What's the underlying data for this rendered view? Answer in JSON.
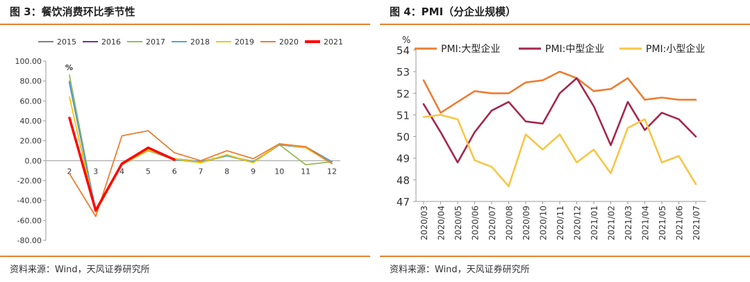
{
  "left_panel": {
    "title": "图 3：餐饮消费环比季节性",
    "source": "资料来源：Wind，天风证券研究所"
  },
  "right_panel": {
    "title": "图 4：PMI（分企业规模）",
    "source": "资料来源：Wind，天风证券研究所"
  },
  "chart_data": [
    {
      "type": "line",
      "title": "图 3：餐饮消费环比季节性",
      "ylabel": "%",
      "xlabel": "",
      "x": [
        "2",
        "3",
        "4",
        "5",
        "6",
        "7",
        "8",
        "9",
        "10",
        "11",
        "12"
      ],
      "ylim": [
        -80,
        100
      ],
      "yticks": [
        "100.00",
        "80.00",
        "60.00",
        "40.00",
        "20.00",
        "0.00",
        "-20.00",
        "-40.00",
        "-60.00",
        "-80.00"
      ],
      "legend_position": "top",
      "grid": false,
      "series": [
        {
          "name": "2015",
          "color": "#7f7f7f",
          "values": [
            78,
            -50,
            -3,
            10,
            2,
            -1,
            5,
            -1,
            16,
            14,
            -1
          ]
        },
        {
          "name": "2016",
          "color": "#7030a0",
          "values": [
            79,
            -51,
            -3,
            11,
            1,
            -1,
            5,
            -1,
            16,
            13,
            -1
          ]
        },
        {
          "name": "2017",
          "color": "#9bbb59",
          "values": [
            86,
            -51,
            -4,
            10,
            1,
            -2,
            5,
            -2,
            16,
            -4,
            -1
          ]
        },
        {
          "name": "2018",
          "color": "#4bacc6",
          "values": [
            80,
            -50,
            -3,
            11,
            1,
            -1,
            5,
            -1,
            16,
            13,
            -1
          ]
        },
        {
          "name": "2019",
          "color": "#f9c300",
          "values": [
            64,
            -52,
            -4,
            11,
            2,
            -2,
            6,
            -2,
            17,
            13,
            -3
          ]
        },
        {
          "name": "2020",
          "color": "#ed7d31",
          "values": [
            -13,
            -56,
            25,
            30,
            8,
            0,
            10,
            2,
            17,
            14,
            -3
          ]
        },
        {
          "name": "2021",
          "color": "#ff0000",
          "values": [
            43,
            -50,
            -3,
            13,
            1,
            null,
            null,
            null,
            null,
            null,
            null
          ]
        }
      ]
    },
    {
      "type": "line",
      "title": "图 4：PMI（分企业规模）",
      "ylabel": "%",
      "xlabel": "",
      "x": [
        "2020/03",
        "2020/04",
        "2020/05",
        "2020/06",
        "2020/07",
        "2020/08",
        "2020/09",
        "2020/10",
        "2020/11",
        "2020/12",
        "2021/01",
        "2021/02",
        "2021/03",
        "2021/04",
        "2021/05",
        "2021/06",
        "2021/07"
      ],
      "ylim": [
        47,
        54
      ],
      "yticks": [
        "54",
        "53",
        "52",
        "51",
        "50",
        "49",
        "48",
        "47"
      ],
      "legend_position": "top",
      "grid": false,
      "series": [
        {
          "name": "PMI:大型企业",
          "color": "#ed7d31",
          "values": [
            52.6,
            51.1,
            51.6,
            52.1,
            52.0,
            52.0,
            52.5,
            52.6,
            53.0,
            52.7,
            52.1,
            52.2,
            52.7,
            51.7,
            51.8,
            51.7,
            51.7
          ]
        },
        {
          "name": "PMI:中型企业",
          "color": "#a5264b",
          "values": [
            51.5,
            50.2,
            48.8,
            50.2,
            51.2,
            51.6,
            50.7,
            50.6,
            52.0,
            52.7,
            51.4,
            49.6,
            51.6,
            50.3,
            51.1,
            50.8,
            50.0
          ]
        },
        {
          "name": "PMI:小型企业",
          "color": "#f9c544",
          "values": [
            50.9,
            51.0,
            50.8,
            48.9,
            48.6,
            47.7,
            50.1,
            49.4,
            50.1,
            48.8,
            49.4,
            48.3,
            50.4,
            50.8,
            48.8,
            49.1,
            47.8
          ]
        }
      ]
    }
  ]
}
